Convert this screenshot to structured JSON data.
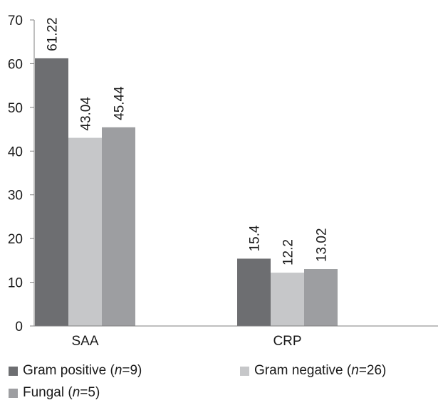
{
  "chart_data": {
    "type": "bar",
    "title": "",
    "xlabel": "",
    "ylabel": "",
    "ylim": [
      0,
      70
    ],
    "yticks": [
      0,
      10,
      20,
      30,
      40,
      50,
      60,
      70
    ],
    "categories": [
      "SAA",
      "CRP"
    ],
    "grid": false,
    "legend_position": "bottom",
    "series": [
      {
        "name": "Gram positive (n=9)",
        "values": [
          61.22,
          15.4
        ],
        "labels": [
          "61.22",
          "15.4"
        ],
        "color": "#6d6e71"
      },
      {
        "name": "Gram negative (n=26)",
        "values": [
          43.04,
          12.2
        ],
        "labels": [
          "43.04",
          "12.2"
        ],
        "color": "#c6c7c9"
      },
      {
        "name": "Fungal (n=5)",
        "values": [
          45.44,
          13.02
        ],
        "labels": [
          "45.44",
          "13.02"
        ],
        "color": "#9d9ea1"
      }
    ]
  }
}
